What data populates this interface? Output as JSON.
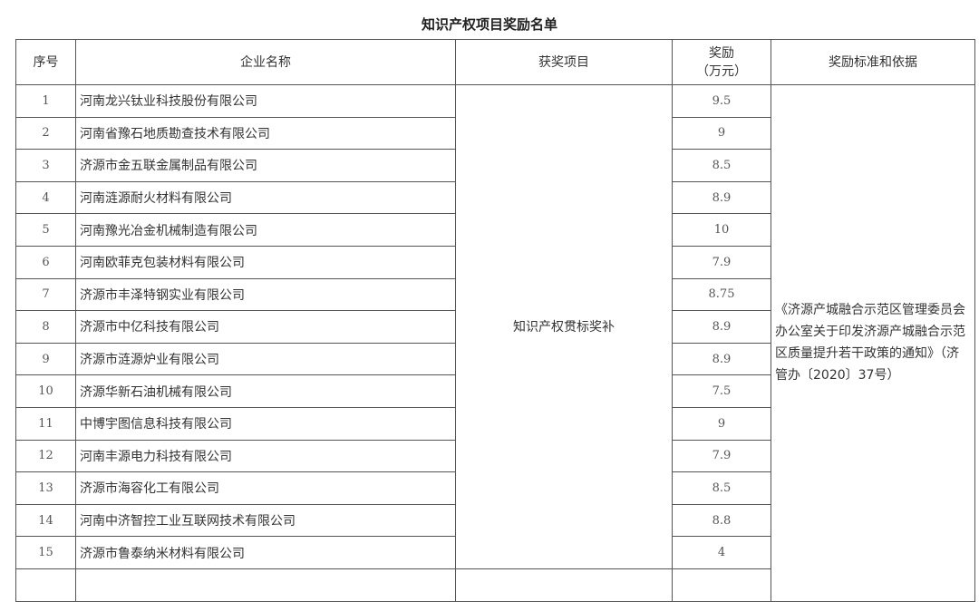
{
  "title": "知识产权项目奖励名单",
  "headers": {
    "index": "序号",
    "company": "企业名称",
    "project": "获奖项目",
    "reward_line1": "奖励",
    "reward_line2": "（万元）",
    "basis": "奖励标准和依据"
  },
  "project": "知识产权贯标奖补",
  "basis": "《济源产城融合示范区管理委员会办公室关于印发济源产城融合示范区质量提升若干政策的通知》（济管办〔2020〕37号）",
  "rows": [
    {
      "index": "1",
      "company": "河南龙兴钛业科技股份有限公司",
      "reward": "9.5"
    },
    {
      "index": "2",
      "company": "河南省豫石地质勘查技术有限公司",
      "reward": "9"
    },
    {
      "index": "3",
      "company": "济源市金五联金属制品有限公司",
      "reward": "8.5"
    },
    {
      "index": "4",
      "company": "河南涟源耐火材料有限公司",
      "reward": "8.9"
    },
    {
      "index": "5",
      "company": "河南豫光冶金机械制造有限公司",
      "reward": "10"
    },
    {
      "index": "6",
      "company": "河南欧菲克包装材料有限公司",
      "reward": "7.9"
    },
    {
      "index": "7",
      "company": "济源市丰泽特钢实业有限公司",
      "reward": "8.75"
    },
    {
      "index": "8",
      "company": "济源市中亿科技有限公司",
      "reward": "8.9"
    },
    {
      "index": "9",
      "company": "济源市涟源炉业有限公司",
      "reward": "8.9"
    },
    {
      "index": "10",
      "company": "济源华新石油机械有限公司",
      "reward": "7.5"
    },
    {
      "index": "11",
      "company": "中博宇图信息科技有限公司",
      "reward": "9"
    },
    {
      "index": "12",
      "company": "河南丰源电力科技有限公司",
      "reward": "7.9"
    },
    {
      "index": "13",
      "company": "济源市海容化工有限公司",
      "reward": "8.5"
    },
    {
      "index": "14",
      "company": "河南中济智控工业互联网技术有限公司",
      "reward": "8.8"
    },
    {
      "index": "15",
      "company": "济源市鲁泰纳米材料有限公司",
      "reward": "4"
    }
  ]
}
